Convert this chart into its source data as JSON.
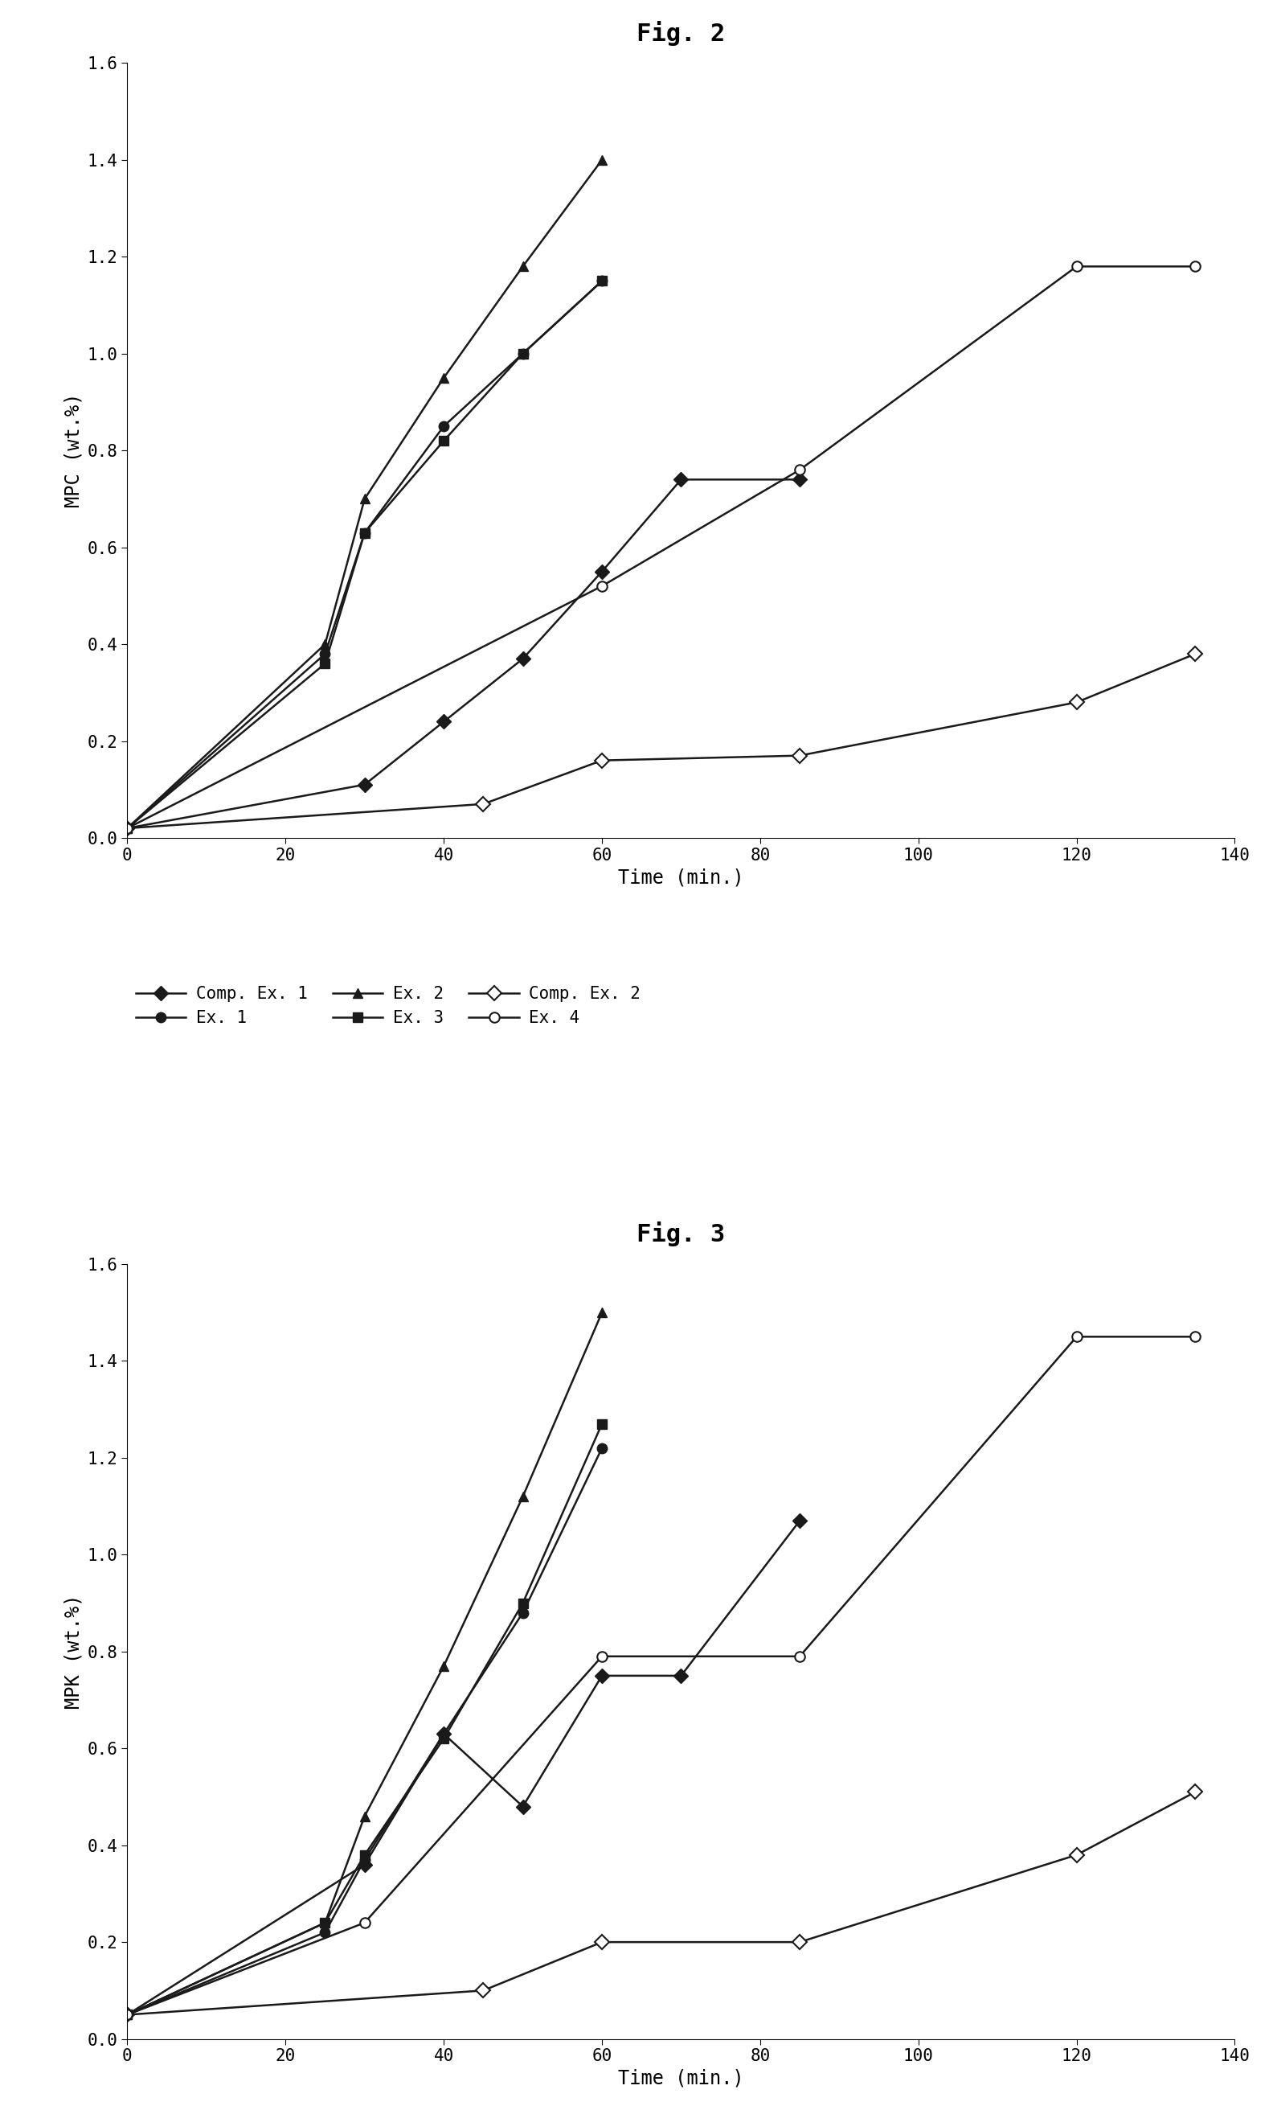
{
  "fig2_title": "Fig. 2",
  "fig3_title": "Fig. 3",
  "fig2_ylabel": "MPC (wt.%)",
  "fig3_ylabel": "MPK (wt.%)",
  "xlabel": "Time (min.)",
  "ylim": [
    0,
    1.6
  ],
  "xlim": [
    0,
    140
  ],
  "yticks": [
    0,
    0.2,
    0.4,
    0.6,
    0.8,
    1.0,
    1.2,
    1.4,
    1.6
  ],
  "xticks": [
    0,
    20,
    40,
    60,
    80,
    100,
    120,
    140
  ],
  "fig2_comp_ex1_x": [
    0,
    30,
    40,
    50,
    60,
    70,
    85
  ],
  "fig2_comp_ex1_y": [
    0.02,
    0.11,
    0.24,
    0.37,
    0.55,
    0.74,
    0.74
  ],
  "fig2_ex1_x": [
    0,
    25,
    30,
    40,
    50,
    60
  ],
  "fig2_ex1_y": [
    0.02,
    0.38,
    0.63,
    0.85,
    1.0,
    1.15
  ],
  "fig2_ex2_x": [
    0,
    25,
    30,
    40,
    50,
    60
  ],
  "fig2_ex2_y": [
    0.02,
    0.4,
    0.7,
    0.95,
    1.18,
    1.4
  ],
  "fig2_ex3_x": [
    0,
    25,
    30,
    40,
    50,
    60
  ],
  "fig2_ex3_y": [
    0.02,
    0.36,
    0.63,
    0.82,
    1.0,
    1.15
  ],
  "fig2_comp_ex2_x": [
    0,
    45,
    60,
    85,
    120,
    135
  ],
  "fig2_comp_ex2_y": [
    0.02,
    0.07,
    0.16,
    0.17,
    0.28,
    0.38
  ],
  "fig2_ex4_x": [
    0,
    60,
    85,
    120,
    135
  ],
  "fig2_ex4_y": [
    0.02,
    0.52,
    0.76,
    1.18,
    1.18
  ],
  "fig3_comp_ex1_x": [
    0,
    30,
    40,
    50,
    60,
    70,
    85
  ],
  "fig3_comp_ex1_y": [
    0.05,
    0.36,
    0.63,
    0.48,
    0.75,
    0.75,
    1.07
  ],
  "fig3_ex1_x": [
    0,
    25,
    30,
    40,
    50,
    60
  ],
  "fig3_ex1_y": [
    0.05,
    0.22,
    0.37,
    0.63,
    0.88,
    1.22
  ],
  "fig3_ex2_x": [
    0,
    25,
    30,
    40,
    50,
    60
  ],
  "fig3_ex2_y": [
    0.05,
    0.24,
    0.46,
    0.77,
    1.12,
    1.5
  ],
  "fig3_ex3_x": [
    0,
    25,
    30,
    40,
    50,
    60
  ],
  "fig3_ex3_y": [
    0.05,
    0.24,
    0.38,
    0.62,
    0.9,
    1.27
  ],
  "fig3_comp_ex2_x": [
    0,
    45,
    60,
    85,
    120,
    135
  ],
  "fig3_comp_ex2_y": [
    0.05,
    0.1,
    0.2,
    0.2,
    0.38,
    0.51
  ],
  "fig3_ex4_x": [
    0,
    30,
    60,
    85,
    120,
    135
  ],
  "fig3_ex4_y": [
    0.05,
    0.24,
    0.79,
    0.79,
    1.45,
    1.45
  ],
  "color": "#1a1a1a",
  "lw": 1.8,
  "ms": 9
}
